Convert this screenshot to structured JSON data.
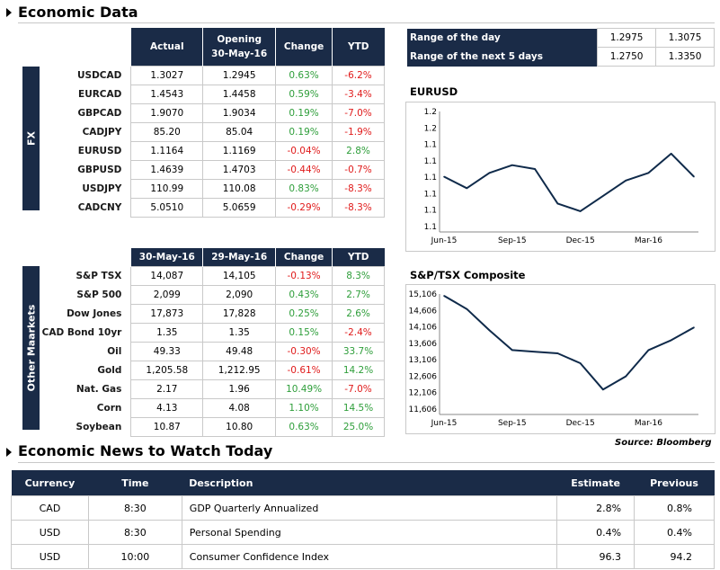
{
  "economic_data": {
    "title": "Economic Data",
    "fx": {
      "group_label": "FX",
      "headers": [
        "Actual",
        "Opening\n30-May-16",
        "Change",
        "YTD"
      ],
      "rows": [
        {
          "name": "USDCAD",
          "actual": "1.3027",
          "opening": "1.2945",
          "change": "0.63%",
          "ytd": "-6.2%"
        },
        {
          "name": "EURCAD",
          "actual": "1.4543",
          "opening": "1.4458",
          "change": "0.59%",
          "ytd": "-3.4%"
        },
        {
          "name": "GBPCAD",
          "actual": "1.9070",
          "opening": "1.9034",
          "change": "0.19%",
          "ytd": "-7.0%"
        },
        {
          "name": "CADJPY",
          "actual": "85.20",
          "opening": "85.04",
          "change": "0.19%",
          "ytd": "-1.9%"
        },
        {
          "name": "EURUSD",
          "actual": "1.1164",
          "opening": "1.1169",
          "change": "-0.04%",
          "ytd": "2.8%"
        },
        {
          "name": "GBPUSD",
          "actual": "1.4639",
          "opening": "1.4703",
          "change": "-0.44%",
          "ytd": "-0.7%"
        },
        {
          "name": "USDJPY",
          "actual": "110.99",
          "opening": "110.08",
          "change": "0.83%",
          "ytd": "-8.3%"
        },
        {
          "name": "CADCNY",
          "actual": "5.0510",
          "opening": "5.0659",
          "change": "-0.29%",
          "ytd": "-8.3%"
        }
      ]
    },
    "markets": {
      "group_label": "Other Maarkets",
      "headers": [
        "30-May-16",
        "29-May-16",
        "Change",
        "YTD"
      ],
      "rows": [
        {
          "name": "S&P TSX",
          "a": "14,087",
          "b": "14,105",
          "change": "-0.13%",
          "ytd": "8.3%"
        },
        {
          "name": "S&P 500",
          "a": "2,099",
          "b": "2,090",
          "change": "0.43%",
          "ytd": "2.7%"
        },
        {
          "name": "Dow Jones",
          "a": "17,873",
          "b": "17,828",
          "change": "0.25%",
          "ytd": "2.6%"
        },
        {
          "name": "CAD Bond 10yr",
          "a": "1.35",
          "b": "1.35",
          "change": "0.15%",
          "ytd": "-2.4%"
        },
        {
          "name": "Oil",
          "a": "49.33",
          "b": "49.48",
          "change": "-0.30%",
          "ytd": "33.7%"
        },
        {
          "name": "Gold",
          "a": "1,205.58",
          "b": "1,212.95",
          "change": "-0.61%",
          "ytd": "14.2%"
        },
        {
          "name": "Nat. Gas",
          "a": "2.17",
          "b": "1.96",
          "change": "10.49%",
          "ytd": "-7.0%"
        },
        {
          "name": "Corn",
          "a": "4.13",
          "b": "4.08",
          "change": "1.10%",
          "ytd": "14.5%"
        },
        {
          "name": "Soybean",
          "a": "10.87",
          "b": "10.80",
          "change": "0.63%",
          "ytd": "25.0%"
        }
      ]
    },
    "range": [
      {
        "label": "Range of the day",
        "low": "1.2975",
        "high": "1.3075"
      },
      {
        "label": "Range of the next 5 days",
        "low": "1.2750",
        "high": "1.3350"
      }
    ],
    "source": "Source: Bloomberg"
  },
  "charts": {
    "chart_data": [
      {
        "type": "line",
        "title": "EURUSD",
        "ytick_labels": [
          "1.2",
          "1.2",
          "1.1",
          "1.1",
          "1.1",
          "1.1",
          "1.1",
          "1.1"
        ],
        "xtick_labels": [
          "Jun-15",
          "Sep-15",
          "Dec-15",
          "Mar-16"
        ],
        "x": [
          "Jun-15",
          "Jul-15",
          "Aug-15",
          "Sep-15",
          "Oct-15",
          "Nov-15",
          "Dec-15",
          "Jan-16",
          "Feb-16",
          "Mar-16",
          "Apr-16",
          "May-16"
        ],
        "values": [
          1.115,
          1.1,
          1.12,
          1.13,
          1.125,
          1.08,
          1.07,
          1.09,
          1.11,
          1.12,
          1.145,
          1.115
        ],
        "ylim": [
          1.05,
          1.2
        ]
      },
      {
        "type": "line",
        "title": "S&P/TSX Composite",
        "ytick_labels": [
          "15,106",
          "14,606",
          "14,106",
          "13,606",
          "13,106",
          "12,606",
          "12,106",
          "11,606"
        ],
        "xtick_labels": [
          "Jun-15",
          "Sep-15",
          "Dec-15",
          "Mar-16"
        ],
        "x": [
          "Jun-15",
          "Jul-15",
          "Aug-15",
          "Sep-15",
          "Oct-15",
          "Nov-15",
          "Dec-15",
          "Jan-16",
          "Feb-16",
          "Mar-16",
          "Apr-16",
          "May-16"
        ],
        "values": [
          15050,
          14650,
          14000,
          13400,
          13350,
          13300,
          13000,
          12200,
          12600,
          13400,
          13700,
          14090
        ],
        "ylim": [
          11606,
          15106
        ]
      }
    ]
  },
  "news": {
    "title": "Economic News to Watch Today",
    "headers": [
      "Currency",
      "Time",
      "Description",
      "Estimate",
      "Previous"
    ],
    "rows": [
      {
        "currency": "CAD",
        "time": "8:30",
        "description": "GDP Quarterly Annualized",
        "estimate": "2.8%",
        "previous": "0.8%"
      },
      {
        "currency": "USD",
        "time": "8:30",
        "description": "Personal Spending",
        "estimate": "0.4%",
        "previous": "0.4%"
      },
      {
        "currency": "USD",
        "time": "10:00",
        "description": "Consumer Confidence Index",
        "estimate": "96.3",
        "previous": "94.2"
      }
    ]
  }
}
